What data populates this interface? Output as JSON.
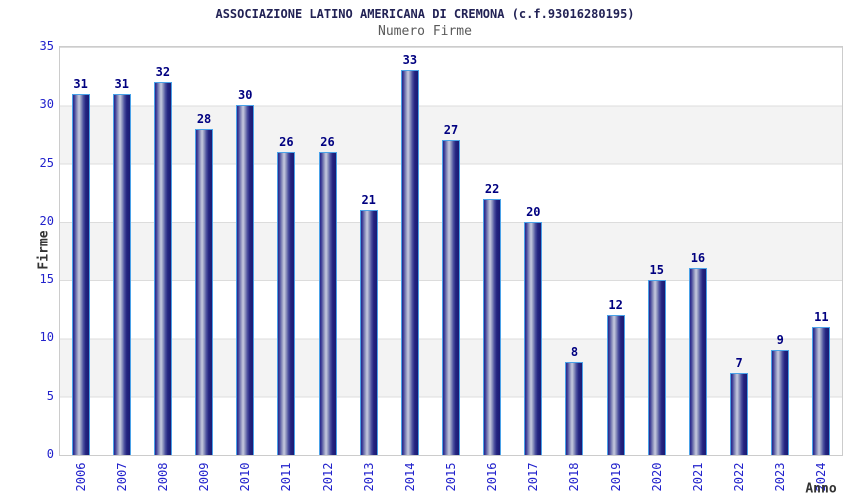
{
  "title": "ASSOCIAZIONE LATINO AMERICANA DI CREMONA (c.f.93016280195)",
  "subtitle": "Numero Firme",
  "chart_data": {
    "type": "bar",
    "title": "Numero Firme",
    "categories": [
      "2006",
      "2007",
      "2008",
      "2009",
      "2010",
      "2011",
      "2012",
      "2013",
      "2014",
      "2015",
      "2016",
      "2017",
      "2018",
      "2019",
      "2020",
      "2021",
      "2022",
      "2023",
      "2024"
    ],
    "values": [
      31,
      31,
      32,
      28,
      30,
      26,
      26,
      21,
      33,
      27,
      22,
      20,
      8,
      12,
      15,
      16,
      7,
      9,
      11
    ],
    "xlabel": "Anno",
    "ylabel": "Firme",
    "ylim": [
      0,
      35
    ],
    "yticks": [
      0,
      5,
      10,
      15,
      20,
      25,
      30,
      35
    ],
    "grid": "horizontal gridlines with alternating background bands",
    "legend": "none",
    "bar_value_labels": true
  },
  "colors": {
    "title": "#222255",
    "subtitle": "#5a5a5a",
    "tick": "#2222cc",
    "value_label": "#000080",
    "bar_dark": "#26268c",
    "bar_highlight": "#c7cadf",
    "bar_border": "#4aa2e8",
    "band": "#f3f3f3",
    "grid": "#dcdcdc",
    "plot_border": "#cccccc"
  }
}
